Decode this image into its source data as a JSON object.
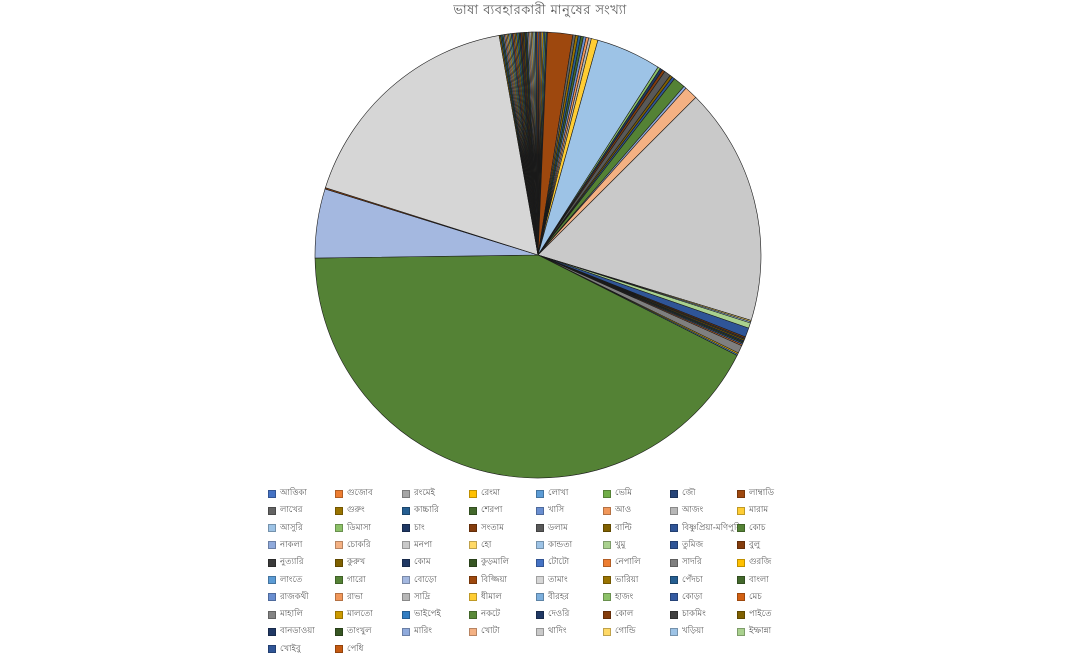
{
  "chart_data": {
    "type": "pie",
    "title": "ভাষা ব্যবহারকারী মানুষের সংখ্যা",
    "legend_position": "bottom",
    "start_angle_deg": 0,
    "direction": "clockwise",
    "slices": [
      {
        "label": "আত্তিকা",
        "value": 0.1,
        "color": "#4472C4"
      },
      {
        "label": "গুজোব",
        "value": 0.1,
        "color": "#ED7D31"
      },
      {
        "label": "রংমেই",
        "value": 0.1,
        "color": "#A5A5A5"
      },
      {
        "label": "রেংমা",
        "value": 0.1,
        "color": "#FFC000"
      },
      {
        "label": "লোখা",
        "value": 0.1,
        "color": "#5B9BD5"
      },
      {
        "label": "ভেমি",
        "value": 0.1,
        "color": "#70AD47"
      },
      {
        "label": "জৌ",
        "value": 0.1,
        "color": "#264478"
      },
      {
        "label": "লাম্বাডি",
        "value": 1.9,
        "color": "#9E480E"
      },
      {
        "label": "লাখের",
        "value": 0.2,
        "color": "#636363"
      },
      {
        "label": "গুরুং",
        "value": 0.2,
        "color": "#997300"
      },
      {
        "label": "কাচ্চারি",
        "value": 0.2,
        "color": "#255E91"
      },
      {
        "label": "শেরপা",
        "value": 0.2,
        "color": "#43682B"
      },
      {
        "label": "খাসি",
        "value": 0.2,
        "color": "#698ED0"
      },
      {
        "label": "আও",
        "value": 0.2,
        "color": "#F1975A"
      },
      {
        "label": "আজং",
        "value": 0.2,
        "color": "#B7B7B7"
      },
      {
        "label": "মারাম",
        "value": 0.5,
        "color": "#FFCD33"
      },
      {
        "label": "আসুরি",
        "value": 4.9,
        "color": "#9DC3E6"
      },
      {
        "label": "ডিমাসা",
        "value": 0.2,
        "color": "#8CC168"
      },
      {
        "label": "চাং",
        "value": 0.2,
        "color": "#1F3864"
      },
      {
        "label": "সংতাম",
        "value": 0.2,
        "color": "#843C0C"
      },
      {
        "label": "ডলাম",
        "value": 0.5,
        "color": "#595959"
      },
      {
        "label": "বাল্টি",
        "value": 0.2,
        "color": "#806000"
      },
      {
        "label": "বিষ্ণুপ্রিয়া-মণিপুরি",
        "value": 0.2,
        "color": "#2F5597"
      },
      {
        "label": "কোচ",
        "value": 0.9,
        "color": "#548235"
      },
      {
        "label": "নাকলা",
        "value": 0.2,
        "color": "#8FAADC"
      },
      {
        "label": "চোকরি",
        "value": 1.0,
        "color": "#F4B183"
      },
      {
        "label": "মনপা",
        "value": 17.9,
        "color": "#C9C9C9"
      },
      {
        "label": "হো",
        "value": 0.1,
        "color": "#FFD966"
      },
      {
        "label": "কান্ডতা",
        "value": 0.1,
        "color": "#9DC3E6"
      },
      {
        "label": "খুমু",
        "value": 0.4,
        "color": "#A9D18E"
      },
      {
        "label": "তুমিজ",
        "value": 0.7,
        "color": "#2F5597"
      },
      {
        "label": "বুলু",
        "value": 0.1,
        "color": "#843C0C"
      },
      {
        "label": "নুত্যারি",
        "value": 0.1,
        "color": "#3A3A3A"
      },
      {
        "label": "কুরুখ",
        "value": 0.1,
        "color": "#7F6000"
      },
      {
        "label": "কোম",
        "value": 0.1,
        "color": "#203864"
      },
      {
        "label": "কুড়মালি",
        "value": 0.1,
        "color": "#375623"
      },
      {
        "label": "টোটো",
        "value": 0.1,
        "color": "#4472C4"
      },
      {
        "label": "নেপালি",
        "value": 0.1,
        "color": "#ED7D31"
      },
      {
        "label": "সাদরি",
        "value": 0.6,
        "color": "#7F7F7F"
      },
      {
        "label": "গুরজি",
        "value": 0.1,
        "color": "#FFC000"
      },
      {
        "label": "লাংতে",
        "value": 0.1,
        "color": "#5B9BD5"
      },
      {
        "label": "গারো",
        "value": 44.0,
        "color": "#548235"
      },
      {
        "label": "বোড়ো",
        "value": 5.2,
        "color": "#A4B8E0"
      },
      {
        "label": "বিজ্জিয়া",
        "value": 0.1,
        "color": "#9E480E"
      },
      {
        "label": "তামাং",
        "value": 18.0,
        "color": "#D6D6D6"
      },
      {
        "label": "ভারিয়া",
        "value": 0.1,
        "color": "#997300"
      },
      {
        "label": "পেঁদচা",
        "value": 0.1,
        "color": "#255E91"
      },
      {
        "label": "বাংলা",
        "value": 0.1,
        "color": "#43682B"
      },
      {
        "label": "রাজকথী",
        "value": 0.1,
        "color": "#698ED0"
      },
      {
        "label": "রাভা",
        "value": 0.1,
        "color": "#F1975A"
      },
      {
        "label": "সাদ্রি",
        "value": 0.1,
        "color": "#B7B7B7"
      },
      {
        "label": "ধীমাল",
        "value": 0.1,
        "color": "#FFCD33"
      },
      {
        "label": "বীরহর",
        "value": 0.1,
        "color": "#7CAFDD"
      },
      {
        "label": "হাজং",
        "value": 0.1,
        "color": "#8CC168"
      },
      {
        "label": "কোড়া",
        "value": 0.1,
        "color": "#335AA1"
      },
      {
        "label": "মেচ",
        "value": 0.1,
        "color": "#D26012"
      },
      {
        "label": "মাহালি",
        "value": 0.1,
        "color": "#848484"
      },
      {
        "label": "মালতো",
        "value": 0.1,
        "color": "#CC9A00"
      },
      {
        "label": "ভাইপেই",
        "value": 0.1,
        "color": "#327DC2"
      },
      {
        "label": "নকটে",
        "value": 0.1,
        "color": "#5A8A39"
      },
      {
        "label": "দেওরি",
        "value": 0.1,
        "color": "#1F3864"
      },
      {
        "label": "কোল",
        "value": 0.1,
        "color": "#843C0C"
      },
      {
        "label": "চাকমিং",
        "value": 0.1,
        "color": "#404040"
      },
      {
        "label": "পাইতে",
        "value": 0.1,
        "color": "#7F6000"
      },
      {
        "label": "বানডাওয়া",
        "value": 0.1,
        "color": "#203864"
      },
      {
        "label": "তাংখুল",
        "value": 0.1,
        "color": "#375623"
      },
      {
        "label": "মারিং",
        "value": 0.1,
        "color": "#8FAADC"
      },
      {
        "label": "খোটা",
        "value": 0.1,
        "color": "#F4B183"
      },
      {
        "label": "থাদিং",
        "value": 0.1,
        "color": "#C9C9C9"
      },
      {
        "label": "গোন্ডি",
        "value": 0.1,
        "color": "#FFD966"
      },
      {
        "label": "খড়িয়া",
        "value": 0.1,
        "color": "#9DC3E6"
      },
      {
        "label": "ইম্ফান্না",
        "value": 0.1,
        "color": "#A9D18E"
      },
      {
        "label": "খোইবু",
        "value": 0.1,
        "color": "#2F5597"
      },
      {
        "label": "পেধি",
        "value": 0.1,
        "color": "#C55A11"
      }
    ]
  }
}
